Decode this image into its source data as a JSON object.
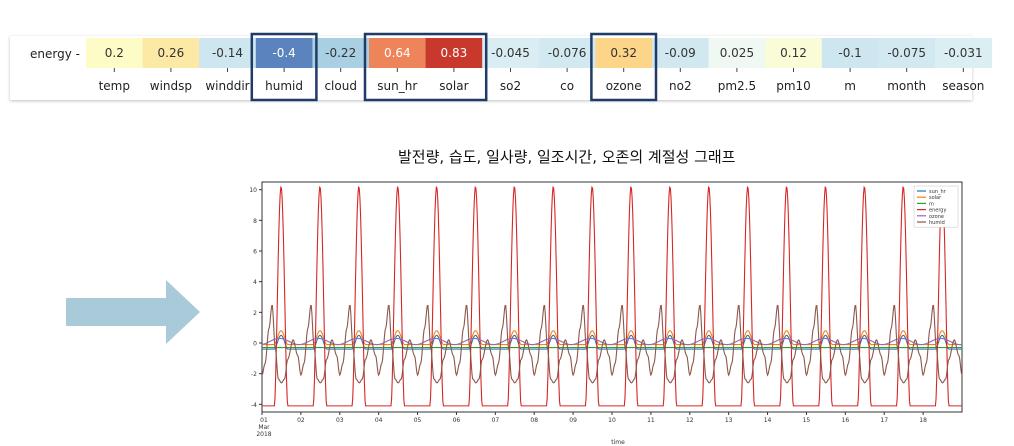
{
  "section_title": "발전량, 습도, 일사량, 일조시간, 오존의 계절성 그래프",
  "colors": {
    "highlight_border": "#1f3b66",
    "arrow": "#a9cbd9",
    "energy_line": "#d62728",
    "humid_line": "#8c564b",
    "sun_hr_line": "#1f77b4",
    "solar_line": "#ff7f0e",
    "m_line": "#2ca02c",
    "ozone_line": "#9467bd"
  },
  "chart_data": [
    {
      "type": "heatmap",
      "row_label": "energy -",
      "categories": [
        "temp",
        "windsp",
        "winddir",
        "humid",
        "cloud",
        "sun_hr",
        "solar",
        "so2",
        "co",
        "ozone",
        "no2",
        "pm2.5",
        "pm10",
        "m",
        "month",
        "season"
      ],
      "values": [
        0.2,
        0.26,
        -0.14,
        -0.4,
        -0.22,
        0.64,
        0.83,
        -0.045,
        -0.076,
        0.32,
        -0.09,
        0.025,
        0.12,
        -0.1,
        -0.075,
        -0.031
      ],
      "value_labels": [
        "0.2",
        "0.26",
        "-0.14",
        "-0.4",
        "-0.22",
        "0.64",
        "0.83",
        "-0.045",
        "-0.076",
        "0.32",
        "-0.09",
        "0.025",
        "0.12",
        "-0.1",
        "-0.075",
        "-0.031"
      ],
      "cell_colors": [
        "#fefcc6",
        "#fde9a6",
        "#cde6ef",
        "#5b84bf",
        "#a9cfe3",
        "#ee855a",
        "#c9382d",
        "#d9edf3",
        "#d3e9f2",
        "#fdd589",
        "#d1e8f1",
        "#f0f8f4",
        "#fafbd7",
        "#cde6ef",
        "#d3e9f2",
        "#dbeff3"
      ],
      "highlighted": [
        "humid",
        "sun_hr",
        "solar",
        "ozone"
      ]
    },
    {
      "type": "line",
      "xlabel": "time",
      "x_ticks": [
        "01\nMar\n2018",
        "02",
        "03",
        "04",
        "05",
        "06",
        "07",
        "08",
        "09",
        "10",
        "11",
        "12",
        "13",
        "14",
        "15",
        "16",
        "17",
        "18"
      ],
      "y_ticks": [
        "10",
        "8",
        "6",
        "4",
        "2",
        "0",
        "-2",
        "-4"
      ],
      "ylim": [
        -4.5,
        10.5
      ],
      "grid": false,
      "legend_placement": "top-right",
      "days": 18,
      "series": [
        {
          "name": "sun_hr",
          "color": "#1f77b4",
          "shape": "pulse",
          "min": -0.4,
          "max": 0.5
        },
        {
          "name": "solar",
          "color": "#ff7f0e",
          "shape": "pulse",
          "min": -0.1,
          "max": 0.8
        },
        {
          "name": "m",
          "color": "#2ca02c",
          "shape": "flat",
          "min": -0.3,
          "max": -0.3
        },
        {
          "name": "energy",
          "color": "#d62728",
          "shape": "pulse",
          "min": -4.1,
          "max": 10.2
        },
        {
          "name": "ozone",
          "color": "#9467bd",
          "shape": "wave",
          "min": -0.1,
          "max": 0.3
        },
        {
          "name": "humid",
          "color": "#8c564b",
          "shape": "humid",
          "min": -2.6,
          "max": 2.5
        }
      ]
    }
  ]
}
